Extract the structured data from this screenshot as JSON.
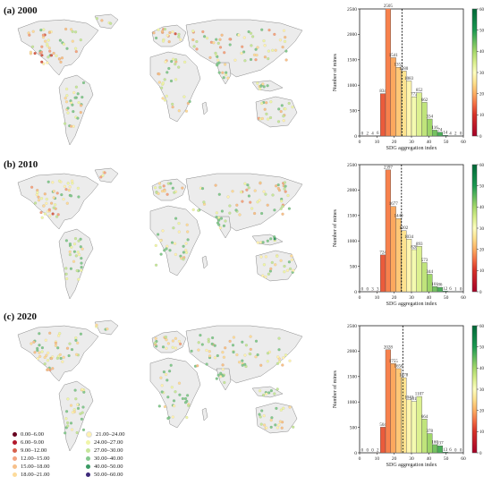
{
  "panels": [
    {
      "label": "(a) 2000"
    },
    {
      "label": "(b) 2010"
    },
    {
      "label": "(c) 2020"
    }
  ],
  "legend": {
    "items": [
      {
        "label": "0.00–6.00",
        "color": "#67001f"
      },
      {
        "label": "6.00–9.00",
        "color": "#b2182b"
      },
      {
        "label": "9.00–12.00",
        "color": "#d6604d"
      },
      {
        "label": "12.00–15.00",
        "color": "#f4a582"
      },
      {
        "label": "15.00–18.00",
        "color": "#f7c08a"
      },
      {
        "label": "18.00–21.00",
        "color": "#fddb9b"
      },
      {
        "label": "21.00–24.00",
        "color": "#fff2b0"
      },
      {
        "label": "24.00–27.00",
        "color": "#f0f5a8"
      },
      {
        "label": "27.00–30.00",
        "color": "#c7e69b"
      },
      {
        "label": "30.00–40.00",
        "color": "#86c98f"
      },
      {
        "label": "40.00–50.00",
        "color": "#3a9a64"
      },
      {
        "label": "50.00–60.00",
        "color": "#3d2a7a"
      }
    ]
  },
  "chart_data": [
    {
      "type": "bar",
      "xlabel": "SDG aggregation index",
      "ylabel": "Number of mines",
      "xlim": [
        0,
        60
      ],
      "ylim": [
        0,
        2500
      ],
      "yticks": [
        0,
        500,
        1000,
        1500,
        2000,
        2500
      ],
      "xticks": [
        0,
        10,
        20,
        30,
        40,
        50,
        60
      ],
      "bin_width": 3,
      "mean_line": 24.5,
      "colorbar_ticks": [
        0,
        10,
        20,
        30,
        40,
        50,
        60
      ],
      "bins_start": [
        0,
        3,
        6,
        9,
        12,
        15,
        18,
        21,
        24,
        27,
        30,
        33,
        36,
        39,
        42,
        45,
        48,
        51,
        54,
        57
      ],
      "values": [
        0,
        2,
        4,
        6,
        834,
        2505,
        1541,
        1352,
        1280,
        1083,
        772,
        852,
        662,
        334,
        116,
        74,
        14,
        4,
        2,
        0
      ],
      "labels": [
        "0",
        "2",
        "4",
        "6",
        "834",
        "2505",
        "1541",
        "1352",
        "1280",
        "1083",
        "772",
        "852",
        "662",
        "334",
        "116",
        "74",
        "14",
        "4",
        "2",
        "0"
      ]
    },
    {
      "type": "bar",
      "xlabel": "SDG aggregation index",
      "ylabel": "Number of mines",
      "xlim": [
        0,
        60
      ],
      "ylim": [
        0,
        2500
      ],
      "yticks": [
        0,
        500,
        1000,
        1500,
        2000,
        2500
      ],
      "xticks": [
        0,
        10,
        20,
        30,
        40,
        50,
        60
      ],
      "bin_width": 3,
      "mean_line": 24.2,
      "colorbar_ticks": [
        0,
        10,
        20,
        30,
        40,
        50,
        60
      ],
      "bins_start": [
        0,
        3,
        6,
        9,
        12,
        15,
        18,
        21,
        24,
        27,
        30,
        33,
        36,
        39,
        42,
        45,
        48,
        51,
        54,
        57
      ],
      "values": [
        0,
        0,
        3,
        3,
        724,
        2397,
        1677,
        1440,
        1202,
        1034,
        828,
        893,
        573,
        344,
        101,
        86,
        12,
        6,
        1,
        0
      ],
      "labels": [
        "0",
        "0",
        "3",
        "3",
        "724",
        "2397",
        "1677",
        "1440",
        "1202",
        "1034",
        "828",
        "893",
        "573",
        "344",
        "101",
        "86",
        "12",
        "6",
        "1",
        "0"
      ]
    },
    {
      "type": "bar",
      "xlabel": "SDG aggregation index",
      "ylabel": "Number of mines",
      "xlim": [
        0,
        60
      ],
      "ylim": [
        0,
        2500
      ],
      "yticks": [
        0,
        500,
        1000,
        1500,
        2000,
        2500
      ],
      "xticks": [
        0,
        10,
        20,
        30,
        40,
        50,
        60
      ],
      "bin_width": 3,
      "mean_line": 25.0,
      "colorbar_ticks": [
        0,
        10,
        20,
        30,
        40,
        50,
        60
      ],
      "bins_start": [
        0,
        3,
        6,
        9,
        12,
        15,
        18,
        21,
        24,
        27,
        30,
        33,
        36,
        39,
        42,
        45,
        48,
        51,
        54,
        57
      ],
      "values": [
        0,
        0,
        0,
        2,
        504,
        2028,
        1755,
        1656,
        1478,
        1043,
        1011,
        1107,
        664,
        378,
        160,
        137,
        13,
        6,
        0,
        0
      ],
      "labels": [
        "0",
        "0",
        "0",
        "2",
        "504",
        "2028",
        "1755",
        "1656",
        "1478",
        "1043",
        "1011",
        "1107",
        "664",
        "378",
        "160",
        "137",
        "13",
        "6",
        "0",
        "0"
      ]
    }
  ]
}
